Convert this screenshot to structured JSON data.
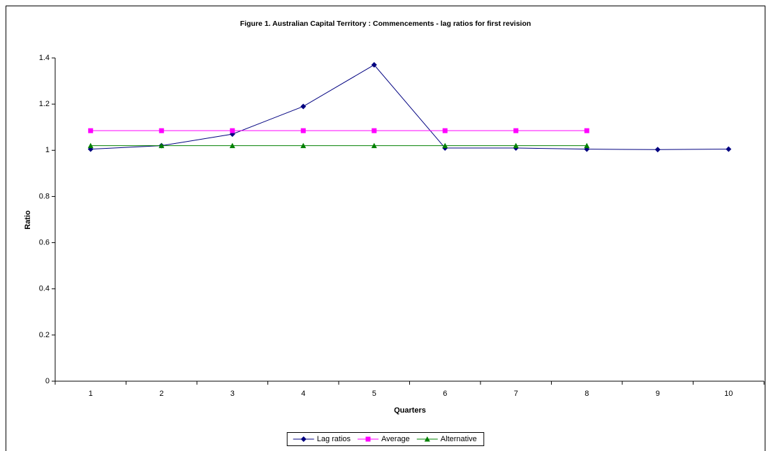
{
  "chart_data": {
    "type": "line",
    "title": "Figure 1.  Australian Capital Territory : Commencements - lag ratios for first revision",
    "x_label": "Quarters",
    "y_label": "Ratio",
    "categories": [
      "1",
      "2",
      "3",
      "4",
      "5",
      "6",
      "7",
      "8",
      "9",
      "10"
    ],
    "series": [
      {
        "name": "Lag ratios",
        "color": "#000080",
        "marker": "diamond",
        "values": [
          1.005,
          1.02,
          1.07,
          1.19,
          1.37,
          1.01,
          1.01,
          1.005,
          1.003,
          1.005
        ]
      },
      {
        "name": "Average",
        "color": "#ff00ff",
        "marker": "square",
        "values": [
          1.085,
          1.085,
          1.085,
          1.085,
          1.085,
          1.085,
          1.085,
          1.085,
          null,
          null
        ]
      },
      {
        "name": "Alternative",
        "color": "#008000",
        "marker": "triangle",
        "values": [
          1.02,
          1.02,
          1.02,
          1.02,
          1.02,
          1.02,
          1.02,
          1.02,
          null,
          null
        ]
      }
    ],
    "ylim": [
      0,
      1.4
    ],
    "yticks": [
      0,
      0.2,
      0.4,
      0.6,
      0.8,
      1,
      1.2,
      1.4
    ],
    "grid": false,
    "legend": "bottom"
  }
}
